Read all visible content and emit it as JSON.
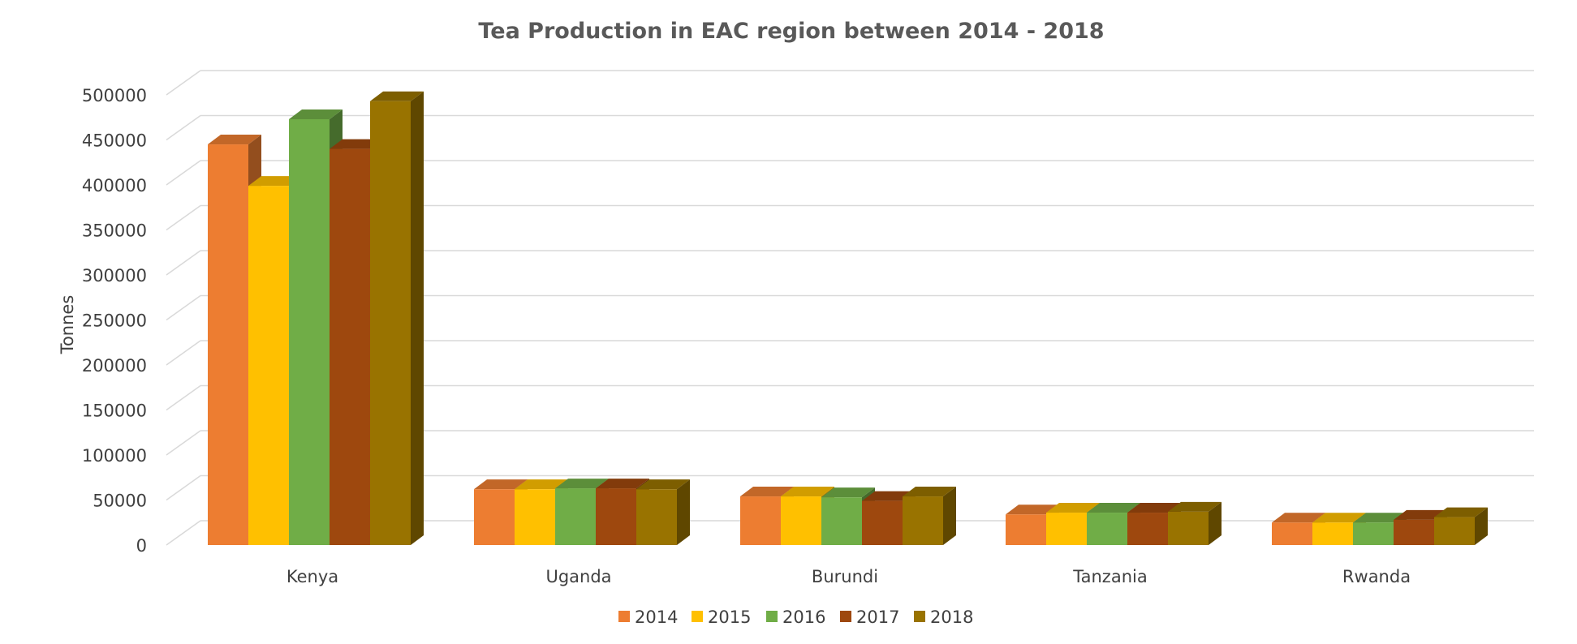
{
  "chart_data": {
    "type": "bar",
    "title": "Tea Production in EAC region between 2014 - 2018",
    "xlabel": "",
    "ylabel": "Tonnes",
    "ylim": [
      0,
      500000
    ],
    "ytick_step": 50000,
    "yticks": [
      "0",
      "50000",
      "100000",
      "150000",
      "200000",
      "250000",
      "300000",
      "350000",
      "400000",
      "450000",
      "500000"
    ],
    "categories": [
      "Kenya",
      "Uganda",
      "Burundi",
      "Tanzania",
      "Rwanda"
    ],
    "series": [
      {
        "name": "2014",
        "color": "#ED7D31",
        "values": [
          445000,
          62000,
          54000,
          34000,
          25000
        ]
      },
      {
        "name": "2015",
        "color": "#FFC000",
        "values": [
          399000,
          62000,
          54000,
          36000,
          25000
        ]
      },
      {
        "name": "2016",
        "color": "#70AD47",
        "values": [
          473000,
          63000,
          53000,
          36000,
          25000
        ]
      },
      {
        "name": "2017",
        "color": "#9E480E",
        "values": [
          440000,
          63000,
          49000,
          36000,
          28000
        ]
      },
      {
        "name": "2018",
        "color": "#997300",
        "values": [
          493000,
          62000,
          54000,
          37000,
          31000
        ]
      }
    ],
    "grid": true,
    "legend_position": "bottom",
    "three_d": true
  }
}
